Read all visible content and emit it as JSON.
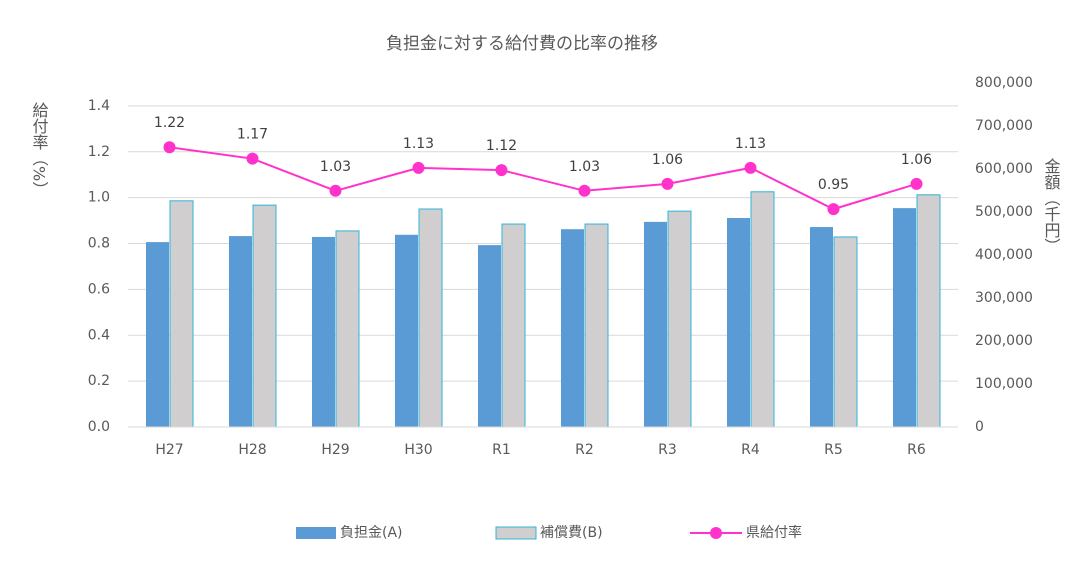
{
  "chart_data": {
    "type": "bar-line",
    "title": "負担金に対する給付費の比率の推移",
    "y_label": "給付率（%）",
    "y2_label": "金額（千円）",
    "categories": [
      "H27",
      "H28",
      "H29",
      "H30",
      "R1",
      "R2",
      "R3",
      "R4",
      "R5",
      "R6"
    ],
    "series": [
      {
        "name": "負担金(A)",
        "type": "bar",
        "axis": "y2",
        "color": "#5b9bd5",
        "values": [
          430000,
          444000,
          442000,
          447000,
          423000,
          460000,
          477000,
          486000,
          465000,
          509000
        ]
      },
      {
        "name": "補償費(B)",
        "type": "bar",
        "axis": "y2",
        "color": "#d0cece",
        "edge_color": "#2eb5d8",
        "values": [
          526000,
          516000,
          456000,
          507000,
          472000,
          472000,
          502000,
          547000,
          442000,
          540000
        ]
      },
      {
        "name": "県給付率",
        "type": "line",
        "color": "#ff33cc",
        "values": [
          1.22,
          1.17,
          1.03,
          1.13,
          1.12,
          1.03,
          1.06,
          1.13,
          0.95,
          1.06
        ]
      }
    ],
    "ylim": [
      0,
      1.5
    ],
    "yticks": [
      {
        "value": 0,
        "label": "0.0"
      },
      0.2,
      0.4,
      0.6,
      0.8,
      {
        "value": 1,
        "label": "1.0"
      },
      1.2,
      1.4
    ],
    "y2lim": [
      0,
      800000
    ],
    "y2ticks": [
      0,
      {
        "value": 100000,
        "label": "100,000"
      },
      {
        "value": 200000,
        "label": "200,000"
      },
      {
        "value": 300000,
        "label": "300,000"
      },
      {
        "value": 400000,
        "label": "400,000"
      },
      {
        "value": 500000,
        "label": "500,000"
      },
      {
        "value": 600000,
        "label": "600,000"
      },
      {
        "value": 700000,
        "label": "700,000"
      },
      {
        "value": 800000,
        "label": "800,000"
      }
    ],
    "grid": true
  }
}
